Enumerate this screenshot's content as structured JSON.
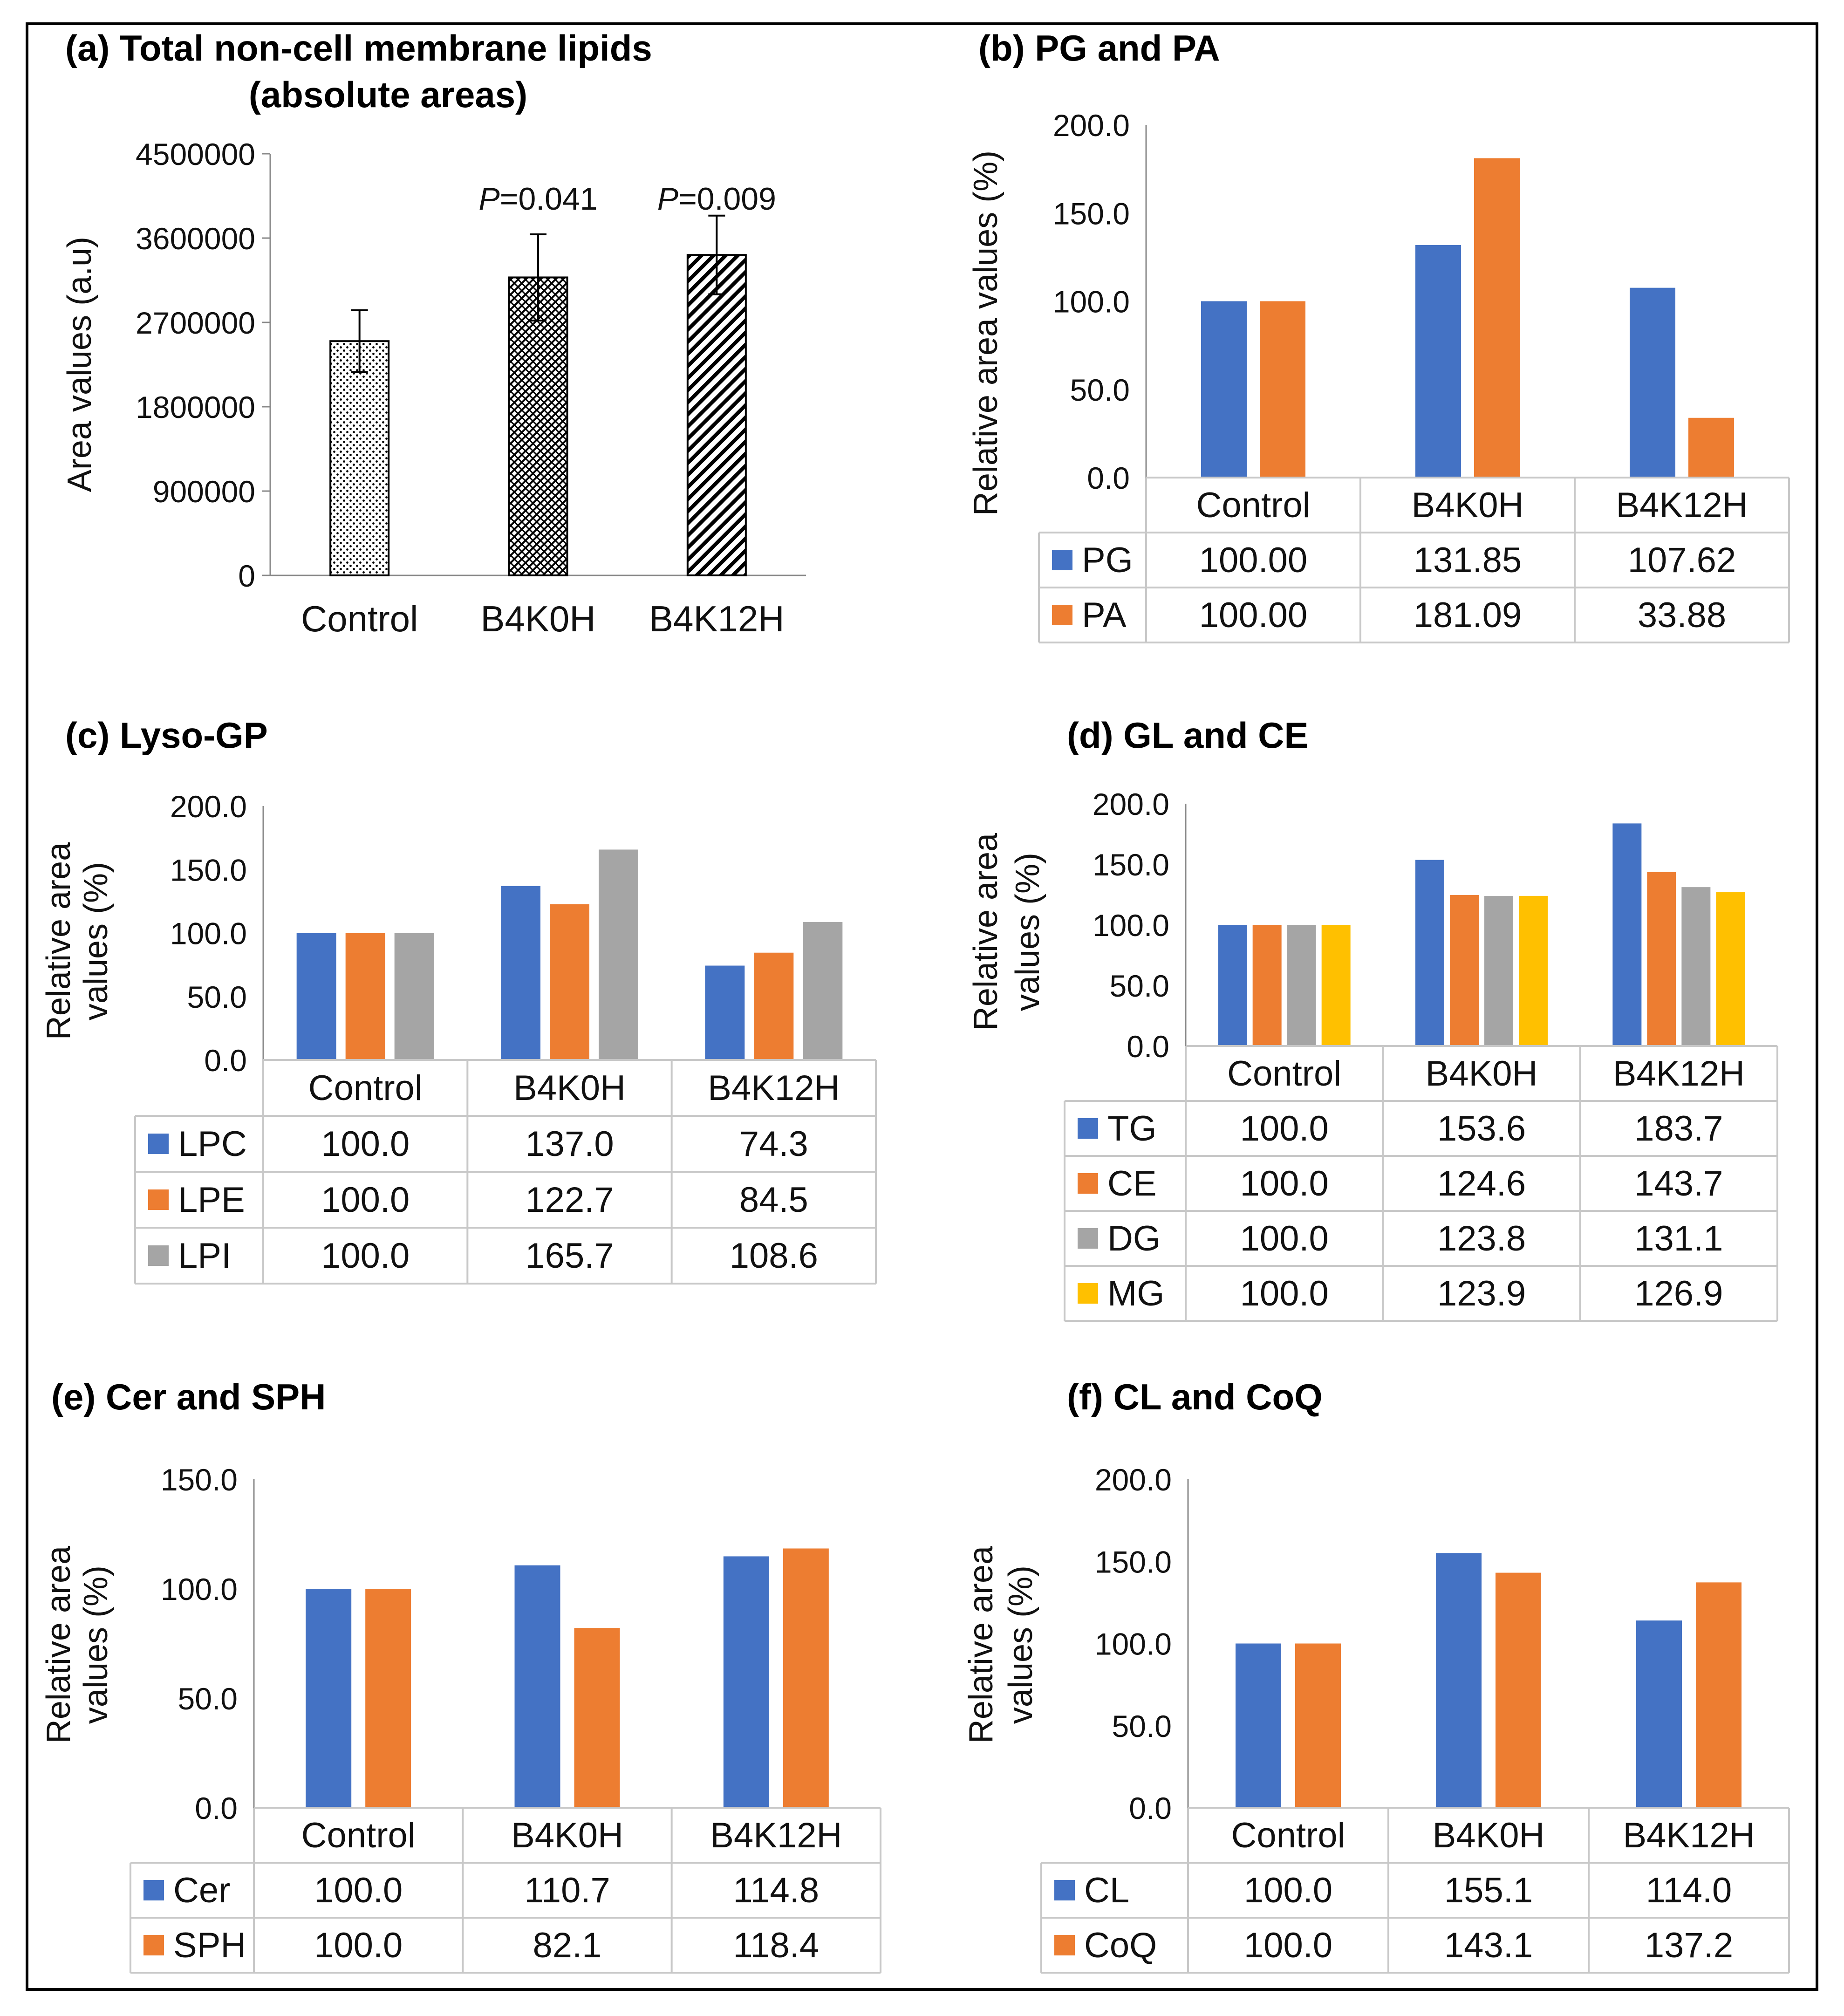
{
  "chart_data": [
    {
      "id": "a",
      "type": "bar",
      "title": "(a) Total non-cell membrane lipids (absolute areas)",
      "title_lines": [
        "(a) Total non-cell membrane lipids",
        "(absolute areas)"
      ],
      "ylabel": "Area values (a.u)",
      "ylim": [
        0,
        4500000
      ],
      "yticks": [
        "0",
        "900000",
        "1800000",
        "2700000",
        "3600000",
        "4500000"
      ],
      "categories": [
        "Control",
        "B4K0H",
        "B4K12H"
      ],
      "values": [
        2500000,
        3180000,
        3420000
      ],
      "errors": [
        330000,
        460000,
        420000
      ],
      "patterns": [
        "dots",
        "crosshatch",
        "diagonal"
      ],
      "annotations": [
        "",
        "P=0.041",
        "P=0.009"
      ]
    },
    {
      "id": "b",
      "type": "bar",
      "title": "(b) PG and PA",
      "ylabel": "Relative area values (%)",
      "ylim": [
        0,
        200
      ],
      "yticks": [
        "0.0",
        "50.0",
        "100.0",
        "150.0",
        "200.0"
      ],
      "categories": [
        "Control",
        "B4K0H",
        "B4K12H"
      ],
      "series": [
        {
          "name": "PG",
          "color": "#4472c4",
          "values": [
            100.0,
            131.85,
            107.62
          ],
          "labels": [
            "100.00",
            "131.85",
            "107.62"
          ]
        },
        {
          "name": "PA",
          "color": "#ed7d31",
          "values": [
            100.0,
            181.09,
            33.88
          ],
          "labels": [
            "100.00",
            "181.09",
            "33.88"
          ]
        }
      ]
    },
    {
      "id": "c",
      "type": "bar",
      "title": "(c) Lyso-GP",
      "ylabel_lines": [
        "Relative area",
        "values (%)"
      ],
      "ylim": [
        0,
        200
      ],
      "yticks": [
        "0.0",
        "50.0",
        "100.0",
        "150.0",
        "200.0"
      ],
      "categories": [
        "Control",
        "B4K0H",
        "B4K12H"
      ],
      "series": [
        {
          "name": "LPC",
          "color": "#4472c4",
          "values": [
            100.0,
            137.0,
            74.3
          ],
          "labels": [
            "100.0",
            "137.0",
            "74.3"
          ]
        },
        {
          "name": "LPE",
          "color": "#ed7d31",
          "values": [
            100.0,
            122.7,
            84.5
          ],
          "labels": [
            "100.0",
            "122.7",
            "84.5"
          ]
        },
        {
          "name": "LPI",
          "color": "#a5a5a5",
          "values": [
            100.0,
            165.7,
            108.6
          ],
          "labels": [
            "100.0",
            "165.7",
            "108.6"
          ]
        }
      ]
    },
    {
      "id": "d",
      "type": "bar",
      "title": "(d) GL and CE",
      "ylabel_lines": [
        "Relative area",
        "values (%)"
      ],
      "ylim": [
        0,
        200
      ],
      "yticks": [
        "0.0",
        "50.0",
        "100.0",
        "150.0",
        "200.0"
      ],
      "categories": [
        "Control",
        "B4K0H",
        "B4K12H"
      ],
      "series": [
        {
          "name": "TG",
          "color": "#4472c4",
          "values": [
            100.0,
            153.6,
            183.7
          ],
          "labels": [
            "100.0",
            "153.6",
            "183.7"
          ]
        },
        {
          "name": "CE",
          "color": "#ed7d31",
          "values": [
            100.0,
            124.6,
            143.7
          ],
          "labels": [
            "100.0",
            "124.6",
            "143.7"
          ]
        },
        {
          "name": "DG",
          "color": "#a5a5a5",
          "values": [
            100.0,
            123.8,
            131.1
          ],
          "labels": [
            "100.0",
            "123.8",
            "131.1"
          ]
        },
        {
          "name": "MG",
          "color": "#ffc000",
          "values": [
            100.0,
            123.9,
            126.9
          ],
          "labels": [
            "100.0",
            "123.9",
            "126.9"
          ]
        }
      ]
    },
    {
      "id": "e",
      "type": "bar",
      "title": "(e) Cer and SPH",
      "ylabel_lines": [
        "Relative area",
        "values (%)"
      ],
      "ylim": [
        0,
        150
      ],
      "yticks": [
        "0.0",
        "50.0",
        "100.0",
        "150.0"
      ],
      "categories": [
        "Control",
        "B4K0H",
        "B4K12H"
      ],
      "series": [
        {
          "name": "Cer",
          "color": "#4472c4",
          "values": [
            100.0,
            110.7,
            114.8
          ],
          "labels": [
            "100.0",
            "110.7",
            "114.8"
          ]
        },
        {
          "name": "SPH",
          "color": "#ed7d31",
          "values": [
            100.0,
            82.1,
            118.4
          ],
          "labels": [
            "100.0",
            "82.1",
            "118.4"
          ]
        }
      ]
    },
    {
      "id": "f",
      "type": "bar",
      "title": "(f) CL and CoQ",
      "ylabel_lines": [
        "Relative area",
        "values (%)"
      ],
      "ylim": [
        0,
        200
      ],
      "yticks": [
        "0.0",
        "50.0",
        "100.0",
        "150.0",
        "200.0"
      ],
      "categories": [
        "Control",
        "B4K0H",
        "B4K12H"
      ],
      "series": [
        {
          "name": "CL",
          "color": "#4472c4",
          "values": [
            100.0,
            155.1,
            114.0
          ],
          "labels": [
            "100.0",
            "155.1",
            "114.0"
          ]
        },
        {
          "name": "CoQ",
          "color": "#ed7d31",
          "values": [
            100.0,
            143.1,
            137.2
          ],
          "labels": [
            "100.0",
            "143.1",
            "137.2"
          ]
        }
      ]
    }
  ]
}
